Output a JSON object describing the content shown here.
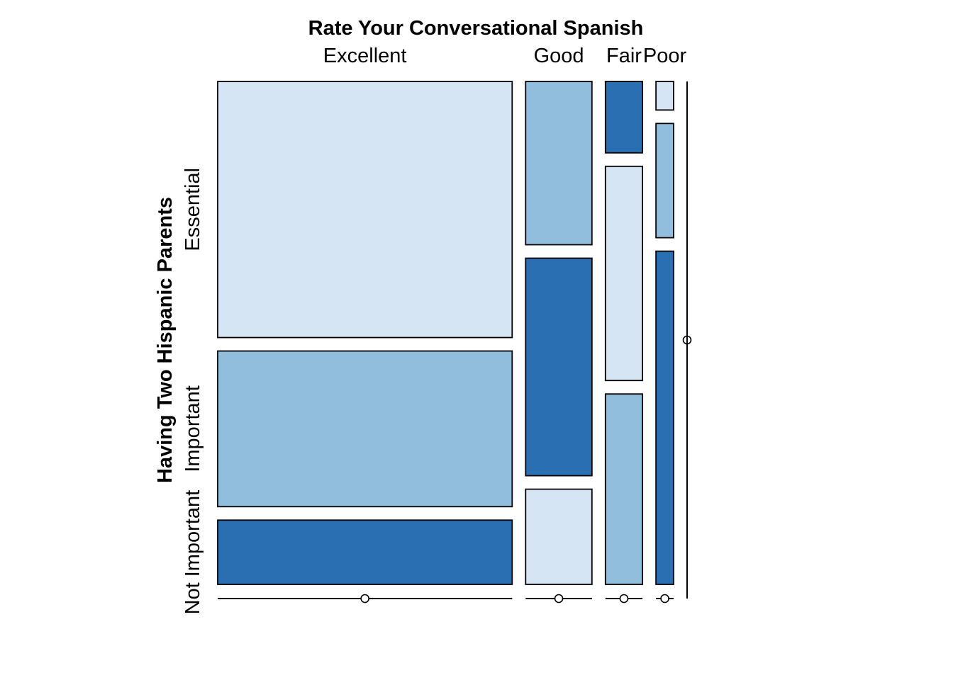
{
  "chart_data": {
    "type": "mosaic",
    "title": "Rate Your Conversational Spanish",
    "ylabel": "Having Two Hispanic Parents",
    "columns": [
      {
        "label": "Excellent",
        "share": 0.635,
        "segments": [
          {
            "category": "Essential",
            "share": 0.538
          },
          {
            "category": "Important",
            "share": 0.327
          },
          {
            "category": "Not Important",
            "share": 0.135
          }
        ]
      },
      {
        "label": "Good",
        "share": 0.143,
        "segments": [
          {
            "category": "Essential",
            "share": 0.343
          },
          {
            "category": "Important",
            "share": 0.457
          },
          {
            "category": "Not Important",
            "share": 0.2
          }
        ]
      },
      {
        "label": "Fair",
        "share": 0.08,
        "segments": [
          {
            "category": "Essential",
            "share": 0.15
          },
          {
            "category": "Important",
            "share": 0.45
          },
          {
            "category": "Not Important",
            "share": 0.4
          }
        ]
      },
      {
        "label": "Poor",
        "share": 0.038,
        "segments": [
          {
            "category": "Essential",
            "share": 0.06
          },
          {
            "category": "Important",
            "share": 0.24
          },
          {
            "category": "Not Important",
            "share": 0.7
          }
        ]
      },
      {
        "label": "",
        "share": 0.0,
        "segments": []
      }
    ],
    "row_labels": [
      "Essential",
      "Important",
      "Not Important"
    ],
    "palette": [
      "#d6e5f4",
      "#90bedc",
      "#2a6fb2"
    ],
    "grid": false
  }
}
